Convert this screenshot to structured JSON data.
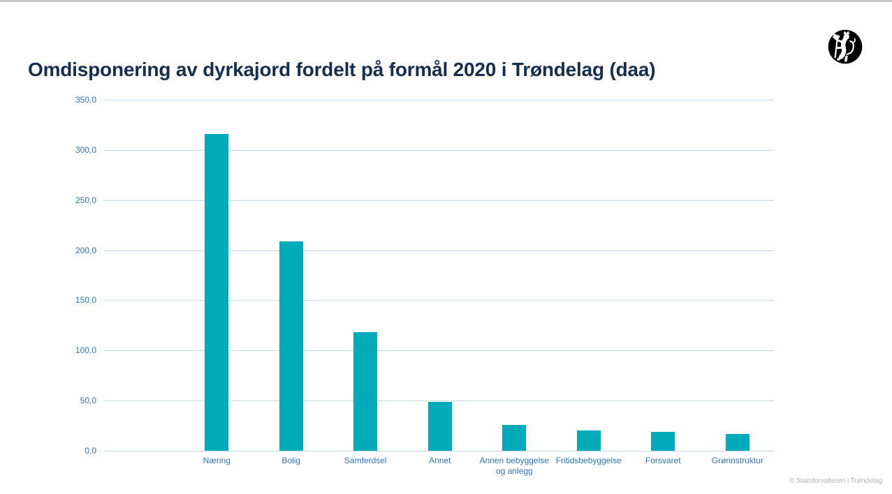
{
  "title": "Omdisponering av dyrkajord fordelt på formål 2020 i Trøndelag (daa)",
  "footer": {
    "copyright": "© Statsforvalteren i Trøndelag"
  },
  "colors": {
    "bar": "#00ABB9",
    "axis_text": "#2E74B5",
    "gridline": "#BDD7EE",
    "title_text": "#152E4D",
    "footer_text": "#B3B3B3",
    "top_border": "#C9C9C9",
    "logo_background": "#000000",
    "logo_foreground": "#FFFFFF"
  },
  "chart_data": {
    "type": "bar",
    "title": "Omdisponering av dyrkajord fordelt på formål 2020 i Trøndelag (daa)",
    "categories": [
      "Næring",
      "Bolig",
      "Samferdsel",
      "Annet",
      "Annen bebyggelse og anlegg",
      "Fritidsbebyggelse",
      "Forsvaret",
      "Grønnstruktur"
    ],
    "values": [
      316,
      209,
      118,
      49,
      26,
      20,
      19,
      17
    ],
    "xlabel": "",
    "ylabel": "",
    "ylim": [
      0,
      350
    ],
    "y_tick_step": 50,
    "y_tick_labels": [
      "350,0",
      "300,0",
      "250,0",
      "200,0",
      "150,0",
      "100,0",
      "50,0",
      "0,0"
    ],
    "grid": "horizontal",
    "legend": "none",
    "bar_color": "#00ABB9"
  }
}
